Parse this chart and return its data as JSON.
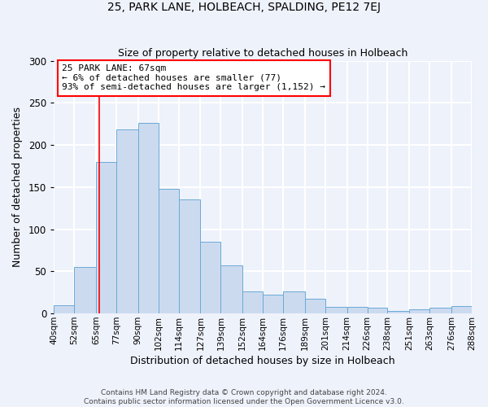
{
  "title": "25, PARK LANE, HOLBEACH, SPALDING, PE12 7EJ",
  "subtitle": "Size of property relative to detached houses in Holbeach",
  "xlabel": "Distribution of detached houses by size in Holbeach",
  "ylabel": "Number of detached properties",
  "bin_edges": [
    40,
    52,
    65,
    77,
    90,
    102,
    114,
    127,
    139,
    152,
    164,
    176,
    189,
    201,
    214,
    226,
    238,
    251,
    263,
    276,
    288
  ],
  "bin_labels": [
    "40sqm",
    "52sqm",
    "65sqm",
    "77sqm",
    "90sqm",
    "102sqm",
    "114sqm",
    "127sqm",
    "139sqm",
    "152sqm",
    "164sqm",
    "176sqm",
    "189sqm",
    "201sqm",
    "214sqm",
    "226sqm",
    "238sqm",
    "251sqm",
    "263sqm",
    "276sqm",
    "288sqm"
  ],
  "counts": [
    10,
    55,
    180,
    218,
    226,
    148,
    135,
    85,
    57,
    26,
    22,
    26,
    18,
    8,
    8,
    7,
    3,
    5,
    7,
    9
  ],
  "bar_color": "#ccdaf0",
  "bar_edge_color": "#6aaad4",
  "property_line_x": 67,
  "property_line_color": "red",
  "annotation_text": "25 PARK LANE: 67sqm\n← 6% of detached houses are smaller (77)\n93% of semi-detached houses are larger (1,152) →",
  "annotation_box_color": "white",
  "annotation_box_edge_color": "red",
  "ylim": [
    0,
    300
  ],
  "yticks": [
    0,
    50,
    100,
    150,
    200,
    250,
    300
  ],
  "footer1": "Contains HM Land Registry data © Crown copyright and database right 2024.",
  "footer2": "Contains public sector information licensed under the Open Government Licence v3.0.",
  "background_color": "#eef2fb",
  "grid_color": "white"
}
